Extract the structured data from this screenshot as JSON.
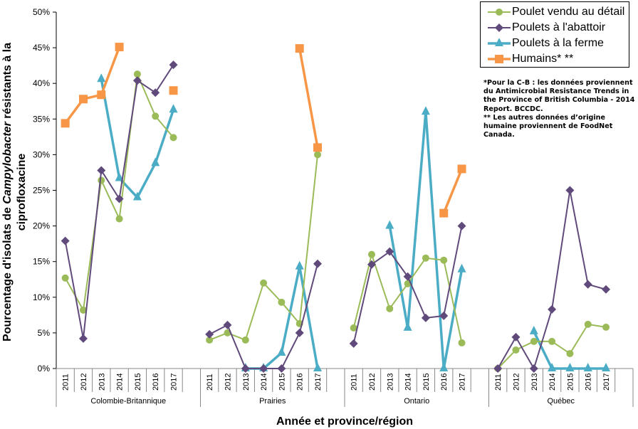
{
  "chart_data": {
    "type": "line",
    "title": "",
    "xlabel": "Année et province/région",
    "ylabel_parts": [
      "Pourcentage d'isolats de ",
      "Campylobacter",
      " résistants à la"
    ],
    "ylabel_line2": "ciprofloxacine",
    "ylabel": "Pourcentage d'isolats de Campylobacter résistants à la ciprofloxacine",
    "ylim": [
      0,
      50
    ],
    "yticks": [
      "0%",
      "5%",
      "10%",
      "15%",
      "20%",
      "25%",
      "30%",
      "35%",
      "40%",
      "45%",
      "50%"
    ],
    "ytick_values": [
      0,
      5,
      10,
      15,
      20,
      25,
      30,
      35,
      40,
      45,
      50
    ],
    "groups": [
      {
        "name": "Colombie-Britannique",
        "years": [
          "2011",
          "2012",
          "2013",
          "2014",
          "2015",
          "2016",
          "2017"
        ]
      },
      {
        "name": "Prairies",
        "years": [
          "2011",
          "2012",
          "2013",
          "2014",
          "2015",
          "2016",
          "2017"
        ]
      },
      {
        "name": "Ontario",
        "years": [
          "2011",
          "2012",
          "2013",
          "2014",
          "2015",
          "2016",
          "2017"
        ]
      },
      {
        "name": "Québec",
        "years": [
          "2011",
          "2012",
          "2013",
          "2014",
          "2015",
          "2016",
          "2017"
        ]
      }
    ],
    "legend_position": "top-right",
    "grid": false,
    "series": [
      {
        "name": "Poulet vendu au détail",
        "color": "#9BBB59",
        "marker": "circle",
        "values": [
          [
            12.7,
            8.2,
            26.4,
            21.0,
            41.3,
            35.4,
            32.4
          ],
          [
            4.0,
            5.0,
            4.0,
            12.0,
            9.3,
            6.3,
            30.0
          ],
          [
            5.7,
            16.0,
            8.4,
            11.9,
            15.5,
            15.2,
            3.6
          ],
          [
            0,
            2.6,
            3.8,
            3.8,
            2.1,
            6.2,
            5.8
          ]
        ]
      },
      {
        "name": "Poulets à l'abattoir",
        "color": "#604A7B",
        "marker": "diamond",
        "values": [
          [
            17.9,
            4.2,
            27.8,
            23.8,
            40.4,
            38.7,
            42.6
          ],
          [
            4.8,
            6.1,
            0,
            0,
            0,
            5.0,
            14.7
          ],
          [
            3.5,
            14.6,
            16.4,
            12.9,
            7.1,
            7.4,
            20.0
          ],
          [
            0,
            4.4,
            0,
            8.3,
            25.0,
            11.8,
            11.1
          ]
        ]
      },
      {
        "name": "Poulets à la ferme",
        "color": "#4BACC6",
        "marker": "triangle",
        "values": [
          [
            null,
            null,
            40.6,
            26.7,
            24.0,
            28.8,
            36.3
          ],
          [
            null,
            null,
            0,
            0,
            2.2,
            14.3,
            0
          ],
          [
            null,
            null,
            20.0,
            5.7,
            36.0,
            0,
            13.9
          ],
          [
            null,
            null,
            5.2,
            0,
            0,
            0,
            0
          ]
        ]
      },
      {
        "name": "Humains* **",
        "color": "#F79646",
        "marker": "square",
        "values": [
          [
            34.4,
            37.8,
            38.4,
            45.1,
            null,
            null,
            39.0
          ],
          [
            null,
            null,
            null,
            null,
            null,
            44.9,
            31.0
          ],
          [
            null,
            null,
            null,
            null,
            null,
            21.8,
            28.0
          ],
          [
            null,
            null,
            null,
            null,
            null,
            null,
            null
          ]
        ]
      }
    ]
  },
  "footnote": "*Pour la C-B : les données proviennent du Antimicrobial Resistance Trends in the Province of British Columbia - 2014 Report. BCCDC.\n** Les autres données d’origine humaine proviennent de FoodNet Canada."
}
